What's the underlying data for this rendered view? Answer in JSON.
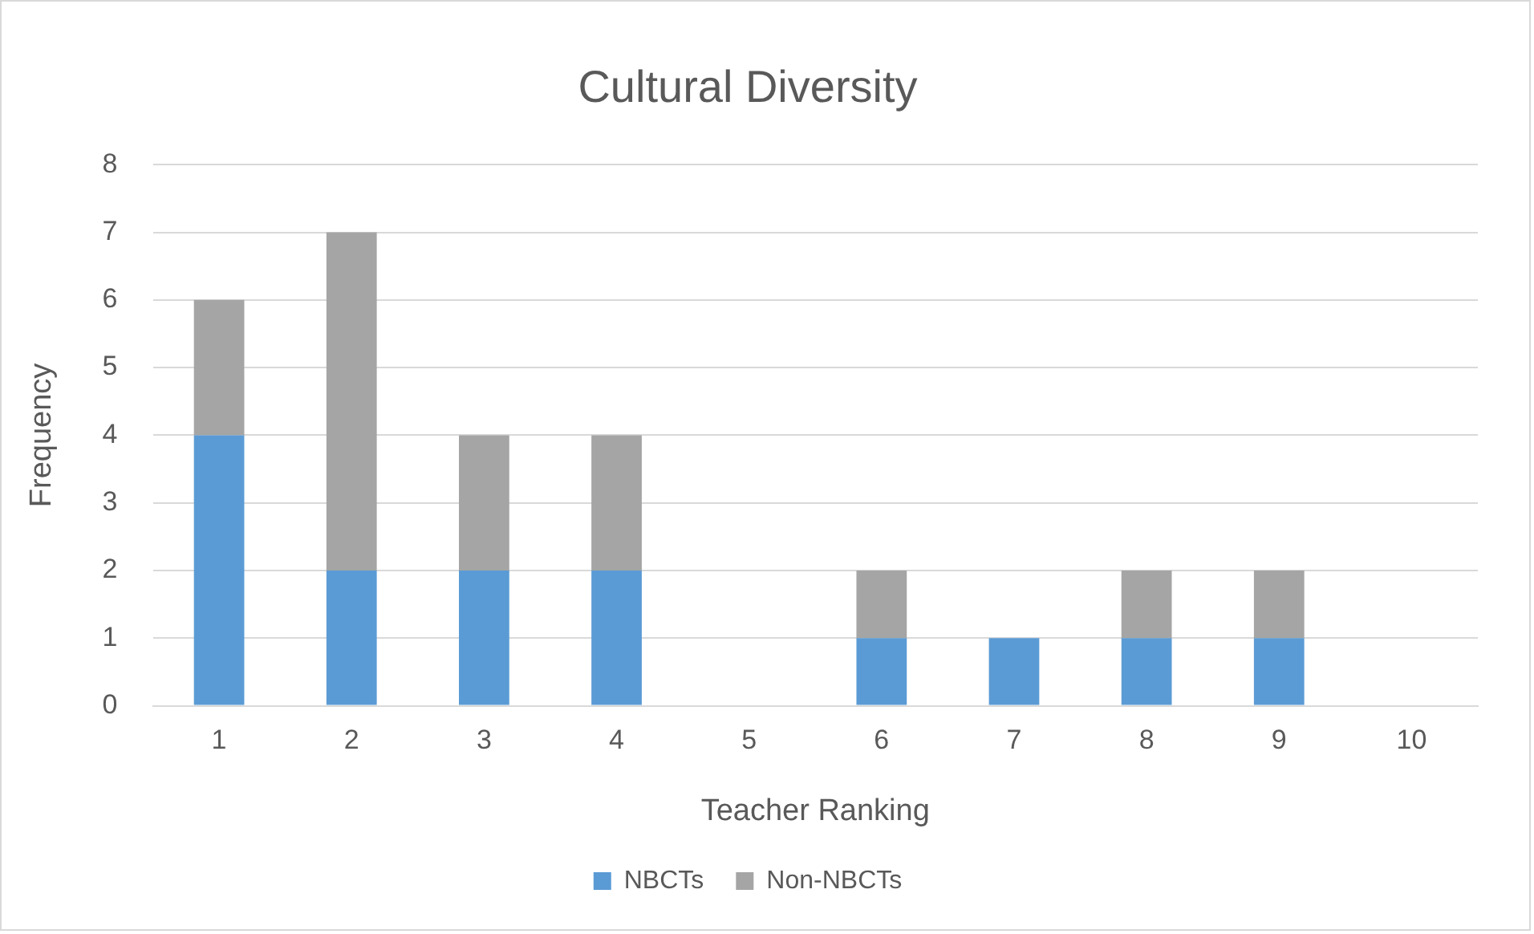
{
  "chart_data": {
    "type": "bar",
    "title": "Cultural Diversity",
    "xlabel": "Teacher Ranking",
    "ylabel": "Frequency",
    "categories": [
      "1",
      "2",
      "3",
      "4",
      "5",
      "6",
      "7",
      "8",
      "9",
      "10"
    ],
    "series": [
      {
        "name": "NBCTs",
        "color": "#5b9bd5",
        "values": [
          4,
          2,
          2,
          2,
          0,
          1,
          1,
          1,
          1,
          0
        ]
      },
      {
        "name": "Non-NBCTs",
        "color": "#a5a5a5",
        "values": [
          2,
          5,
          2,
          2,
          0,
          1,
          0,
          1,
          1,
          0
        ]
      }
    ],
    "stacked": true,
    "ylim": [
      0,
      8
    ],
    "yticks": [
      0,
      1,
      2,
      3,
      4,
      5,
      6,
      7,
      8
    ],
    "grid": "y",
    "legend": "bottom"
  }
}
